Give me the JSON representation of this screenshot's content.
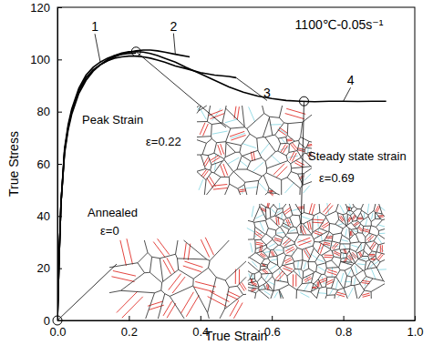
{
  "chart_data": {
    "type": "line",
    "title": "1100℃-0.05s⁻¹",
    "x_label": "True Strain",
    "y_label": "True Stress",
    "xlim": [
      0,
      1.0
    ],
    "ylim": [
      0,
      120
    ],
    "xticks": [
      {
        "value": 0,
        "label": "0.0"
      },
      {
        "value": 0.2,
        "label": "0.2"
      },
      {
        "value": 0.4,
        "label": "0.4"
      },
      {
        "value": 0.6,
        "label": "0.6"
      },
      {
        "value": 0.8,
        "label": "0.8"
      },
      {
        "value": 1.0,
        "label": "1.0"
      }
    ],
    "yticks": [
      0,
      20,
      40,
      60,
      80,
      100,
      120
    ],
    "grid": false,
    "series": [
      {
        "name": "1",
        "color": "#000000",
        "x": [
          0,
          0.005,
          0.01,
          0.02,
          0.03,
          0.04,
          0.06,
          0.08,
          0.1,
          0.12,
          0.14,
          0.16,
          0.18,
          0.2,
          0.22
        ],
        "values": [
          0,
          25,
          45,
          66,
          75,
          81,
          89,
          94,
          97,
          99,
          100.5,
          101.5,
          102,
          102.3,
          102.5
        ]
      },
      {
        "name": "2",
        "color": "#000000",
        "x": [
          0,
          0.005,
          0.01,
          0.02,
          0.03,
          0.04,
          0.06,
          0.08,
          0.1,
          0.12,
          0.14,
          0.16,
          0.18,
          0.2,
          0.22,
          0.24,
          0.26,
          0.28,
          0.3,
          0.33,
          0.37
        ],
        "values": [
          0,
          25,
          45,
          64,
          73,
          79,
          87,
          92,
          95.5,
          98,
          99.5,
          101,
          102,
          102.8,
          103.3,
          103.6,
          103.6,
          103.3,
          102.8,
          102,
          101
        ]
      },
      {
        "name": "3",
        "color": "#000000",
        "x": [
          0,
          0.005,
          0.01,
          0.02,
          0.03,
          0.04,
          0.06,
          0.08,
          0.1,
          0.12,
          0.14,
          0.16,
          0.18,
          0.2,
          0.22,
          0.24,
          0.26,
          0.28,
          0.3,
          0.33,
          0.36,
          0.4,
          0.44,
          0.48,
          0.5
        ],
        "values": [
          0,
          25,
          45,
          65,
          74,
          80,
          88,
          93,
          96,
          98,
          99.5,
          100.5,
          101,
          101.3,
          101.3,
          101,
          100.5,
          99.8,
          99,
          97.5,
          96.5,
          95,
          94,
          93.5,
          93
        ]
      },
      {
        "name": "4",
        "color": "#000000",
        "x": [
          0,
          0.005,
          0.01,
          0.02,
          0.03,
          0.04,
          0.06,
          0.08,
          0.1,
          0.12,
          0.14,
          0.16,
          0.18,
          0.2,
          0.22,
          0.24,
          0.26,
          0.28,
          0.3,
          0.33,
          0.36,
          0.4,
          0.44,
          0.48,
          0.52,
          0.56,
          0.6,
          0.64,
          0.68,
          0.72,
          0.76,
          0.8,
          0.84,
          0.88,
          0.92
        ],
        "values": [
          0,
          25,
          45,
          65,
          74,
          80,
          88,
          93,
          96,
          98,
          100,
          101.5,
          102.5,
          103,
          103,
          102.8,
          102.3,
          101.5,
          100.5,
          99,
          97,
          94.5,
          92,
          89.5,
          87.5,
          86,
          85,
          84.3,
          84,
          83.8,
          84,
          84,
          83.9,
          84,
          84
        ]
      }
    ],
    "annotations": [
      {
        "label": "Annealed",
        "value_text": "ε=0",
        "x": 0,
        "y": 0
      },
      {
        "label": "Peak Strain",
        "value_text": "ε=0.22",
        "x": 0.22,
        "y": 103
      },
      {
        "label": "Steady state strain",
        "value_text": "ε=0.69",
        "x": 0.69,
        "y": 84
      }
    ]
  }
}
